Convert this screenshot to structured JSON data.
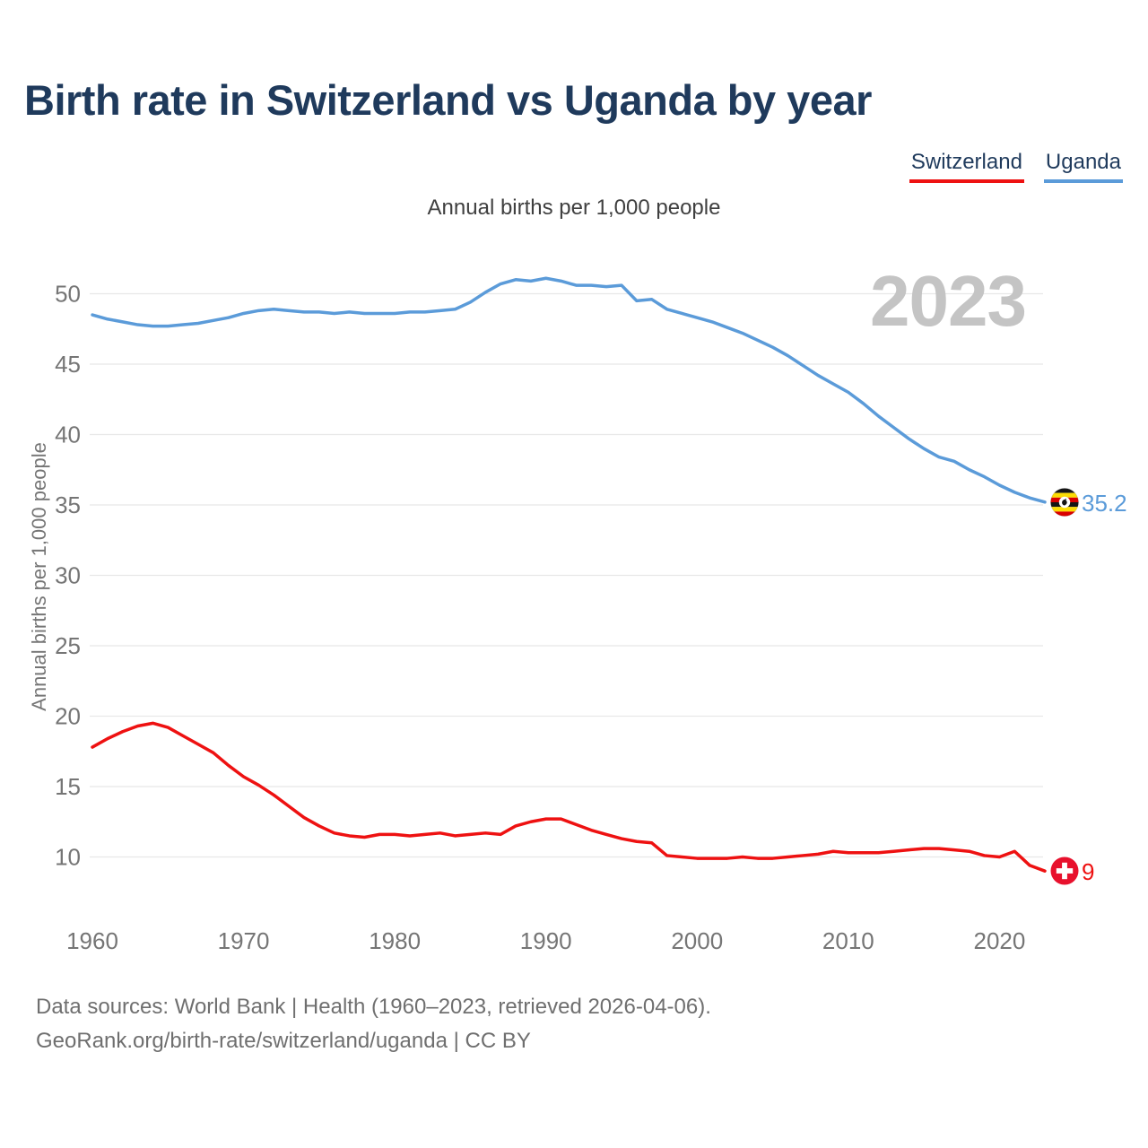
{
  "page": {
    "title": "Birth rate in Switzerland vs Uganda by year"
  },
  "legend": {
    "items": [
      {
        "label": "Switzerland",
        "color": "#ee1111"
      },
      {
        "label": "Uganda",
        "color": "#5b9bd9"
      }
    ]
  },
  "subtitle": "Annual births per 1,000 people",
  "y_axis_title": "Annual births per 1,000 people",
  "watermark": "2023",
  "end_labels": {
    "uganda": "35.2",
    "switzerland": "9"
  },
  "icons": {
    "uganda": "uganda-flag-icon",
    "switzerland": "switzerland-flag-icon"
  },
  "footer": {
    "line1": "Data sources: World Bank | Health (1960–2023, retrieved 2026-04-06).",
    "line2": "GeoRank.org/birth-rate/switzerland/uganda | CC BY"
  },
  "chart_data": {
    "type": "line",
    "title": "Birth rate in Switzerland vs Uganda by year",
    "ylabel": "Annual births per 1,000 people",
    "xlabel": "",
    "grid": true,
    "legend_position": "top-right",
    "ylim": [
      8.5,
      52.5
    ],
    "yticks": [
      10,
      15,
      20,
      25,
      30,
      35,
      40,
      45,
      50
    ],
    "xticks": [
      1960,
      1970,
      1980,
      1990,
      2000,
      2010,
      2020
    ],
    "x": [
      1960,
      1961,
      1962,
      1963,
      1964,
      1965,
      1966,
      1967,
      1968,
      1969,
      1970,
      1971,
      1972,
      1973,
      1974,
      1975,
      1976,
      1977,
      1978,
      1979,
      1980,
      1981,
      1982,
      1983,
      1984,
      1985,
      1986,
      1987,
      1988,
      1989,
      1990,
      1991,
      1992,
      1993,
      1994,
      1995,
      1996,
      1997,
      1998,
      1999,
      2000,
      2001,
      2002,
      2003,
      2004,
      2005,
      2006,
      2007,
      2008,
      2009,
      2010,
      2011,
      2012,
      2013,
      2014,
      2015,
      2016,
      2017,
      2018,
      2019,
      2020,
      2021,
      2022,
      2023
    ],
    "series": [
      {
        "name": "Switzerland",
        "color": "#ee1111",
        "end_value": 9,
        "values": [
          17.8,
          18.4,
          18.9,
          19.3,
          19.5,
          19.2,
          18.6,
          18.0,
          17.4,
          16.5,
          15.7,
          15.1,
          14.4,
          13.6,
          12.8,
          12.2,
          11.7,
          11.5,
          11.4,
          11.6,
          11.6,
          11.5,
          11.6,
          11.7,
          11.5,
          11.6,
          11.7,
          11.6,
          12.2,
          12.5,
          12.7,
          12.7,
          12.3,
          11.9,
          11.6,
          11.3,
          11.1,
          11.0,
          10.1,
          10.0,
          9.9,
          9.9,
          9.9,
          10.0,
          9.9,
          9.9,
          10.0,
          10.1,
          10.2,
          10.4,
          10.3,
          10.3,
          10.3,
          10.4,
          10.5,
          10.6,
          10.6,
          10.5,
          10.4,
          10.1,
          10.0,
          10.4,
          9.4,
          9.0
        ]
      },
      {
        "name": "Uganda",
        "color": "#5b9bd9",
        "end_value": 35.2,
        "values": [
          48.5,
          48.2,
          48.0,
          47.8,
          47.7,
          47.7,
          47.8,
          47.9,
          48.1,
          48.3,
          48.6,
          48.8,
          48.9,
          48.8,
          48.7,
          48.7,
          48.6,
          48.7,
          48.6,
          48.6,
          48.6,
          48.7,
          48.7,
          48.8,
          48.9,
          49.4,
          50.1,
          50.7,
          51.0,
          50.9,
          51.1,
          50.9,
          50.6,
          50.6,
          50.5,
          50.6,
          49.5,
          49.6,
          48.9,
          48.6,
          48.3,
          48.0,
          47.6,
          47.2,
          46.7,
          46.2,
          45.6,
          44.9,
          44.2,
          43.6,
          43.0,
          42.2,
          41.3,
          40.5,
          39.7,
          39.0,
          38.4,
          38.1,
          37.5,
          37.0,
          36.4,
          35.9,
          35.5,
          35.2
        ]
      }
    ]
  }
}
